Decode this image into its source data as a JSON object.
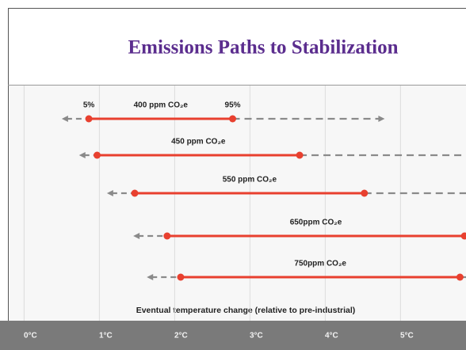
{
  "chart_data": {
    "type": "range",
    "title": "Emissions Paths to Stabilization",
    "x_label": "Eventual temperature change (relative to pre-industrial)",
    "range_labels": [
      "5%",
      "95%"
    ],
    "categories": [
      "400 ppm CO₂e",
      "450 ppm CO₂e",
      "550 ppm CO₂e",
      "650ppm CO₂e",
      "750ppm CO₂e"
    ],
    "low_dashed": [
      0.5,
      0.73,
      1.1,
      1.45,
      1.63
    ],
    "low": [
      0.86,
      0.97,
      1.47,
      1.9,
      2.08
    ],
    "high": [
      2.77,
      3.66,
      4.52,
      5.85,
      5.79
    ],
    "high_dashed": [
      4.79,
      6.1,
      6.2,
      6.3,
      6.3
    ],
    "color": "#e8402f",
    "dash_color": "#8a8a8a",
    "xlim": [
      -0.32,
      5.87
    ],
    "xticks": [
      {
        "value": 0,
        "label": "0°C"
      },
      {
        "value": 1,
        "label": "1°C"
      },
      {
        "value": 2,
        "label": "2°C"
      },
      {
        "value": 3,
        "label": "3°C"
      },
      {
        "value": 4,
        "label": "4°C"
      },
      {
        "value": 5,
        "label": "5°C"
      }
    ],
    "grid": true
  }
}
